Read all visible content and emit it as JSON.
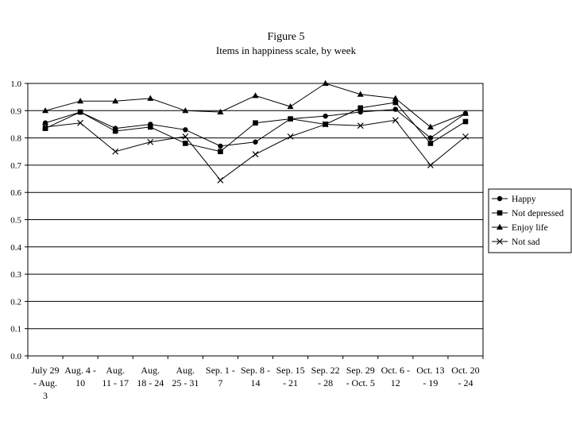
{
  "chart_data": {
    "type": "line",
    "title": "Figure 5",
    "subtitle": "Items in happiness scale, by week",
    "xlabel": "",
    "ylabel": "",
    "ylim": [
      0,
      1
    ],
    "yticks": [
      "0.0",
      "0.1",
      "0.2",
      "0.3",
      "0.4",
      "0.5",
      "0.6",
      "0.7",
      "0.8",
      "0.9",
      "1.0"
    ],
    "grid": true,
    "legend": "right",
    "categories": [
      "July 29 - Aug. 3",
      "Aug. 4 - 10",
      "Aug. 11 - 17",
      "Aug. 18 - 24",
      "Aug. 25 - 31",
      "Sep. 1 - 7",
      "Sep. 8 - 14",
      "Sep. 15 - 21",
      "Sep. 22 - 28",
      "Sep. 29 - Oct. 5",
      "Oct. 6 - 12",
      "Oct. 13 - 19",
      "Oct. 20 - 24"
    ],
    "category_lines": [
      [
        "July 29",
        "- Aug.",
        "3"
      ],
      [
        "Aug. 4 -",
        "10"
      ],
      [
        "Aug.",
        "11 - 17"
      ],
      [
        "Aug.",
        "18 - 24"
      ],
      [
        "Aug.",
        "25 - 31"
      ],
      [
        "Sep. 1 -",
        "7"
      ],
      [
        "Sep. 8 -",
        "14"
      ],
      [
        "Sep. 15",
        "- 21"
      ],
      [
        "Sep. 22",
        "- 28"
      ],
      [
        "Sep. 29",
        "- Oct. 5"
      ],
      [
        "Oct. 6 -",
        "12"
      ],
      [
        "Oct. 13",
        "- 19"
      ],
      [
        "Oct. 20",
        "- 24"
      ]
    ],
    "series": [
      {
        "name": "Happy",
        "marker": "circle",
        "values": [
          0.855,
          0.895,
          0.835,
          0.85,
          0.83,
          0.77,
          0.785,
          0.87,
          0.88,
          0.895,
          0.905,
          0.8,
          0.89
        ]
      },
      {
        "name": "Not depressed",
        "marker": "square",
        "values": [
          0.835,
          0.895,
          0.825,
          0.84,
          0.78,
          0.75,
          0.855,
          0.87,
          0.85,
          0.91,
          0.93,
          0.78,
          0.86
        ]
      },
      {
        "name": "Enjoy life",
        "marker": "triangle",
        "values": [
          0.9,
          0.935,
          0.935,
          0.945,
          0.9,
          0.895,
          0.955,
          0.915,
          1.0,
          0.96,
          0.945,
          0.84,
          0.89
        ]
      },
      {
        "name": "Not sad",
        "marker": "x",
        "values": [
          0.84,
          0.855,
          0.75,
          0.785,
          0.805,
          0.645,
          0.74,
          0.805,
          0.85,
          0.845,
          0.865,
          0.7,
          0.805
        ]
      }
    ]
  }
}
